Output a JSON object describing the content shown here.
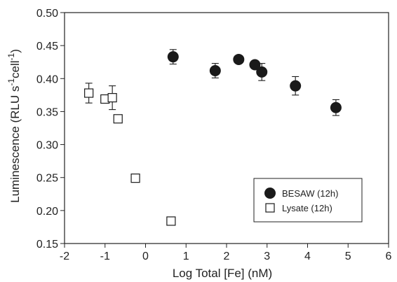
{
  "chart_data": {
    "type": "scatter",
    "xlabel": "Log Total [Fe] (nM)",
    "ylabel": {
      "base": "Luminescence (RLU s",
      "sup1": "-1",
      "mid": "cell",
      "sup2": "-1",
      "end": ")"
    },
    "xlim": [
      -2,
      6
    ],
    "ylim": [
      0.15,
      0.5
    ],
    "x_ticks": [
      "-2",
      "-1",
      "0",
      "1",
      "2",
      "3",
      "4",
      "5",
      "6"
    ],
    "y_ticks": [
      "0.15",
      "0.20",
      "0.25",
      "0.30",
      "0.35",
      "0.40",
      "0.45",
      "0.50"
    ],
    "legend_position": "bottom-right",
    "series": [
      {
        "name": "BESAW (12h)",
        "marker": "filled-circle",
        "color": "#1a1a1a",
        "points": [
          {
            "x": 0.68,
            "y": 0.433,
            "err": 0.011
          },
          {
            "x": 1.72,
            "y": 0.412,
            "err": 0.011
          },
          {
            "x": 2.3,
            "y": 0.429,
            "err": 0.0
          },
          {
            "x": 2.7,
            "y": 0.421,
            "err": 0.0
          },
          {
            "x": 2.87,
            "y": 0.41,
            "err": 0.013
          },
          {
            "x": 3.7,
            "y": 0.389,
            "err": 0.014
          },
          {
            "x": 4.7,
            "y": 0.356,
            "err": 0.012
          }
        ]
      },
      {
        "name": "Lysate (12h)",
        "marker": "open-square",
        "color": "#1a1a1a",
        "points": [
          {
            "x": -1.4,
            "y": 0.378,
            "err": 0.015
          },
          {
            "x": -1.0,
            "y": 0.369,
            "err": 0.0
          },
          {
            "x": -0.82,
            "y": 0.371,
            "err": 0.018
          },
          {
            "x": -0.68,
            "y": 0.339,
            "err": 0.0
          },
          {
            "x": -0.25,
            "y": 0.249,
            "err": 0.0
          },
          {
            "x": 0.63,
            "y": 0.184,
            "err": 0.0
          }
        ]
      }
    ]
  }
}
